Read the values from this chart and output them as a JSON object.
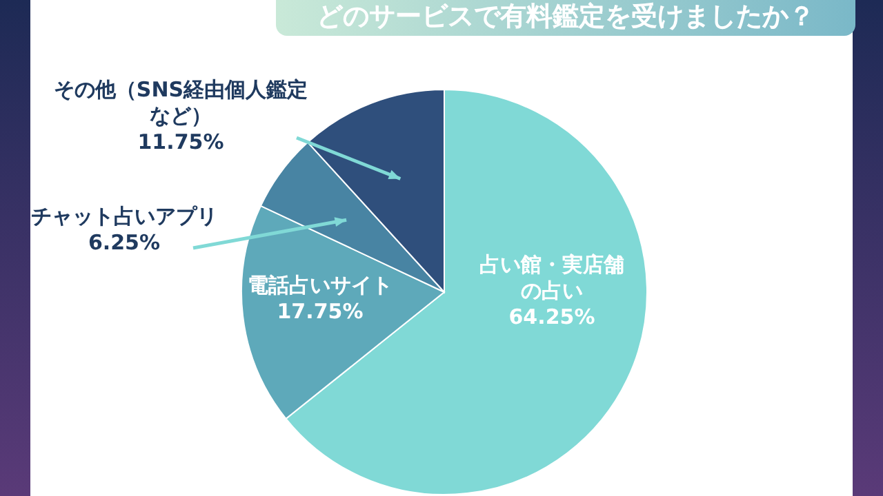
{
  "chart_data": {
    "type": "pie",
    "title": "どのサービスで有料鑑定を受けましたか？",
    "categories": [
      "占い館・実店舗の占い",
      "電話占いサイト",
      "チャット占いアプリ",
      "その他（SNS経由個人鑑定など）"
    ],
    "values": [
      64.25,
      17.75,
      6.25,
      11.75
    ],
    "colors": [
      "#80d9d6",
      "#5ea9ba",
      "#4884a3",
      "#2f4f7c"
    ],
    "value_labels": [
      "64.25%",
      "17.75%",
      "6.25%",
      "11.75%"
    ]
  }
}
